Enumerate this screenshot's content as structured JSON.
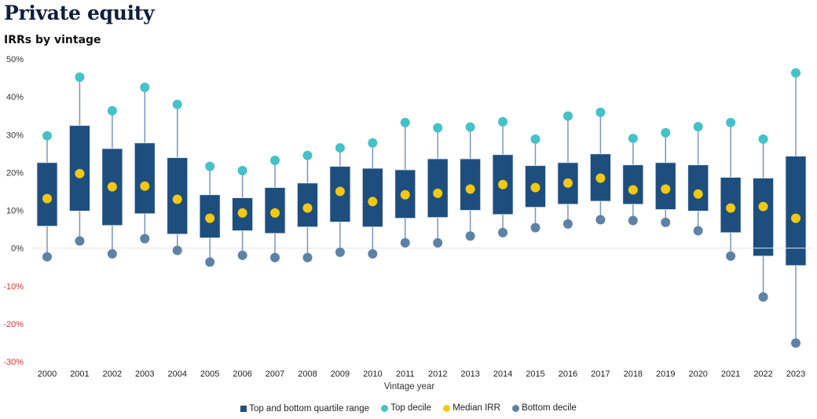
{
  "title": "Private equity",
  "subtitle": "IRRs by vintage",
  "colors": {
    "box": "#1d4e7e",
    "top_decile": "#44c2c8",
    "median": "#f4c812",
    "bottom_decile": "#5d82a6",
    "whisker": "#7a97b6",
    "negative_tick": "#e0303a",
    "zero_line": "#e2e2e2"
  },
  "legend": [
    {
      "label": "Top and bottom quartile range",
      "key": "box",
      "shape": "square"
    },
    {
      "label": "Top decile",
      "key": "top_decile",
      "shape": "circle"
    },
    {
      "label": "Median IRR",
      "key": "median",
      "shape": "circle"
    },
    {
      "label": "Bottom decile",
      "key": "bottom_decile",
      "shape": "circle"
    }
  ],
  "chart_data": {
    "type": "box",
    "title": "Private equity",
    "subtitle": "IRRs by vintage",
    "xlabel": "Vintage year",
    "ylabel": "",
    "ylim": [
      -30,
      50
    ],
    "yticks": [
      50,
      40,
      30,
      20,
      10,
      0,
      -10,
      -20,
      -30
    ],
    "ytick_labels": [
      "50%",
      "40%",
      "30%",
      "20%",
      "10%",
      "0%",
      "-10%",
      "-20%",
      "-30%"
    ],
    "grid": false,
    "legend_position": "bottom",
    "categories": [
      "2000",
      "2001",
      "2002",
      "2003",
      "2004",
      "2005",
      "2006",
      "2007",
      "2008",
      "2009",
      "2010",
      "2011",
      "2012",
      "2013",
      "2014",
      "2015",
      "2016",
      "2017",
      "2018",
      "2019",
      "2020",
      "2021",
      "2022",
      "2023"
    ],
    "series": [
      {
        "name": "Top decile",
        "values": [
          29.7,
          45.2,
          36.3,
          42.5,
          38.0,
          21.6,
          20.5,
          23.2,
          24.5,
          26.5,
          27.8,
          33.2,
          31.8,
          32.0,
          33.4,
          28.8,
          34.9,
          35.9,
          29.0,
          30.5,
          32.1,
          33.2,
          28.8,
          46.3
        ]
      },
      {
        "name": "Top quartile",
        "values": [
          22.6,
          32.4,
          26.3,
          27.8,
          23.9,
          14.1,
          13.3,
          16.0,
          17.2,
          21.6,
          21.1,
          20.7,
          23.6,
          23.6,
          24.7,
          21.8,
          22.6,
          24.9,
          22.0,
          22.6,
          22.0,
          18.7,
          18.5,
          24.3
        ]
      },
      {
        "name": "Median IRR",
        "values": [
          13.1,
          19.7,
          16.2,
          16.4,
          12.9,
          7.9,
          9.3,
          9.3,
          10.6,
          15.0,
          12.3,
          14.1,
          14.5,
          15.6,
          16.8,
          16.0,
          17.2,
          18.5,
          15.4,
          15.6,
          14.3,
          10.6,
          11.0,
          7.9
        ]
      },
      {
        "name": "Bottom quartile",
        "values": [
          5.8,
          9.8,
          6.0,
          9.1,
          3.7,
          2.7,
          4.6,
          3.9,
          5.6,
          6.9,
          5.6,
          7.9,
          8.1,
          10.0,
          8.9,
          10.8,
          11.6,
          12.4,
          11.6,
          10.2,
          9.8,
          4.1,
          -2.1,
          -4.6
        ]
      },
      {
        "name": "Bottom decile",
        "values": [
          -2.3,
          1.9,
          -1.5,
          2.5,
          -0.6,
          -3.7,
          -1.9,
          -2.5,
          -2.5,
          -1.1,
          -1.5,
          1.4,
          1.4,
          3.2,
          4.1,
          5.4,
          6.4,
          7.5,
          7.3,
          6.8,
          4.6,
          -2.1,
          -12.9,
          -25.1
        ]
      }
    ]
  }
}
